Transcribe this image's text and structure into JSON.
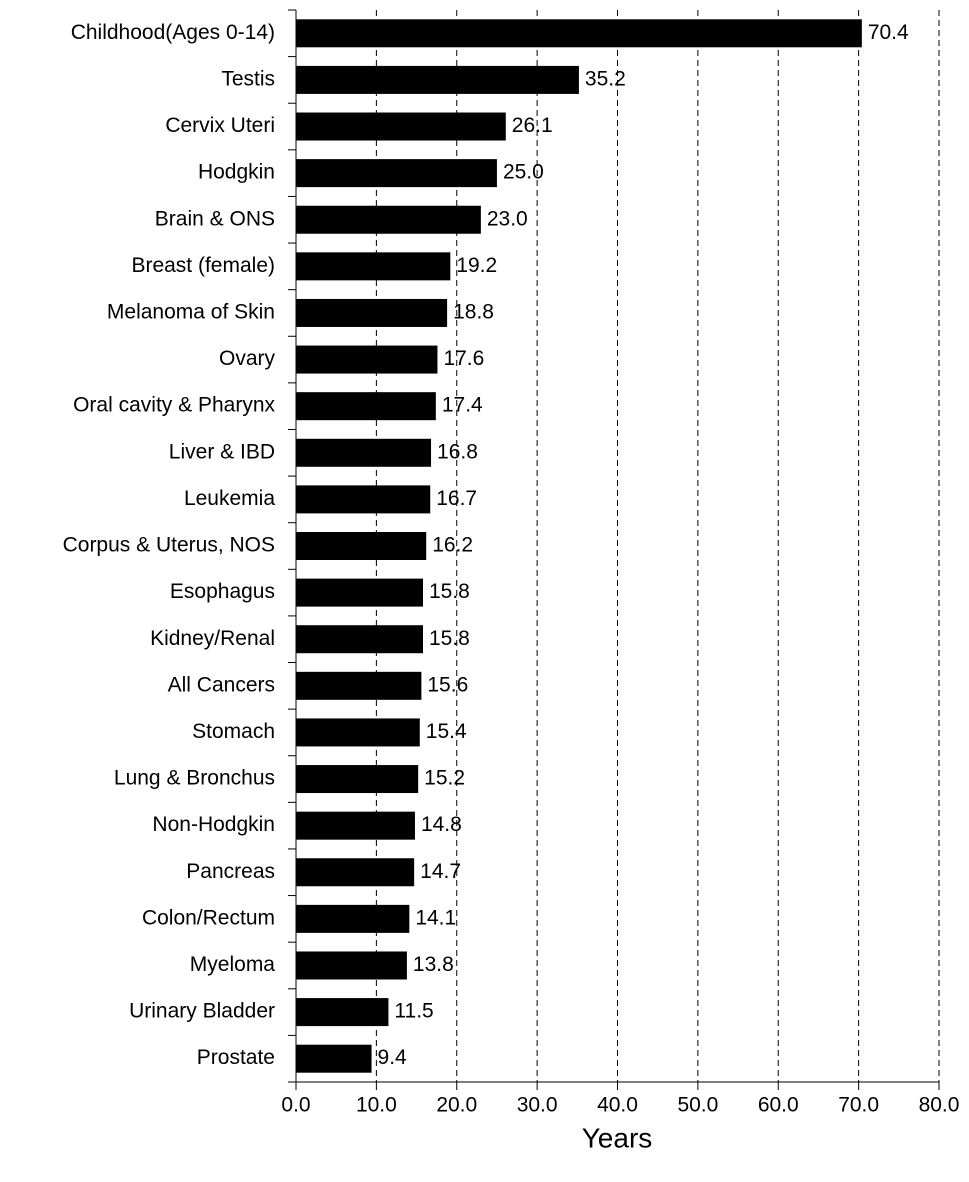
{
  "chart_data": {
    "type": "bar",
    "orientation": "horizontal",
    "x_label": "Years",
    "categories": [
      "Childhood(Ages 0-14)",
      "Testis",
      "Cervix Uteri",
      "Hodgkin",
      "Brain & ONS",
      "Breast (female)",
      "Melanoma of Skin",
      "Ovary",
      "Oral cavity & Pharynx",
      "Liver & IBD",
      "Leukemia",
      "Corpus & Uterus, NOS",
      "Esophagus",
      "Kidney/Renal",
      "All Cancers",
      "Stomach",
      "Lung & Bronchus",
      "Non-Hodgkin",
      "Pancreas",
      "Colon/Rectum",
      "Myeloma",
      "Urinary Bladder",
      "Prostate"
    ],
    "values": [
      70.4,
      35.2,
      26.1,
      25.0,
      23.0,
      19.2,
      18.8,
      17.6,
      17.4,
      16.8,
      16.7,
      16.2,
      15.8,
      15.8,
      15.6,
      15.4,
      15.2,
      14.8,
      14.7,
      14.1,
      13.8,
      11.5,
      9.4
    ],
    "value_labels": [
      "70.4",
      "35.2",
      "26.1",
      "25.0",
      "23.0",
      "19.2",
      "18.8",
      "17.6",
      "17.4",
      "16.8",
      "16.7",
      "16.2",
      "15.8",
      "15.8",
      "15.6",
      "15.4",
      "15.2",
      "14.8",
      "14.7",
      "14.1",
      "13.8",
      "11.5",
      "9.4"
    ],
    "color": "#000000",
    "xlim": [
      0,
      80
    ],
    "xticks": [
      {
        "value": 0,
        "label": "0.0"
      },
      {
        "value": 10,
        "label": "10.0"
      },
      {
        "value": 20,
        "label": "20.0"
      },
      {
        "value": 30,
        "label": "30.0"
      },
      {
        "value": 40,
        "label": "40.0"
      },
      {
        "value": 50,
        "label": "50.0"
      },
      {
        "value": 60,
        "label": "60.0"
      },
      {
        "value": 70,
        "label": "70.0"
      },
      {
        "value": 80,
        "label": "80.0"
      }
    ],
    "grid": true
  }
}
